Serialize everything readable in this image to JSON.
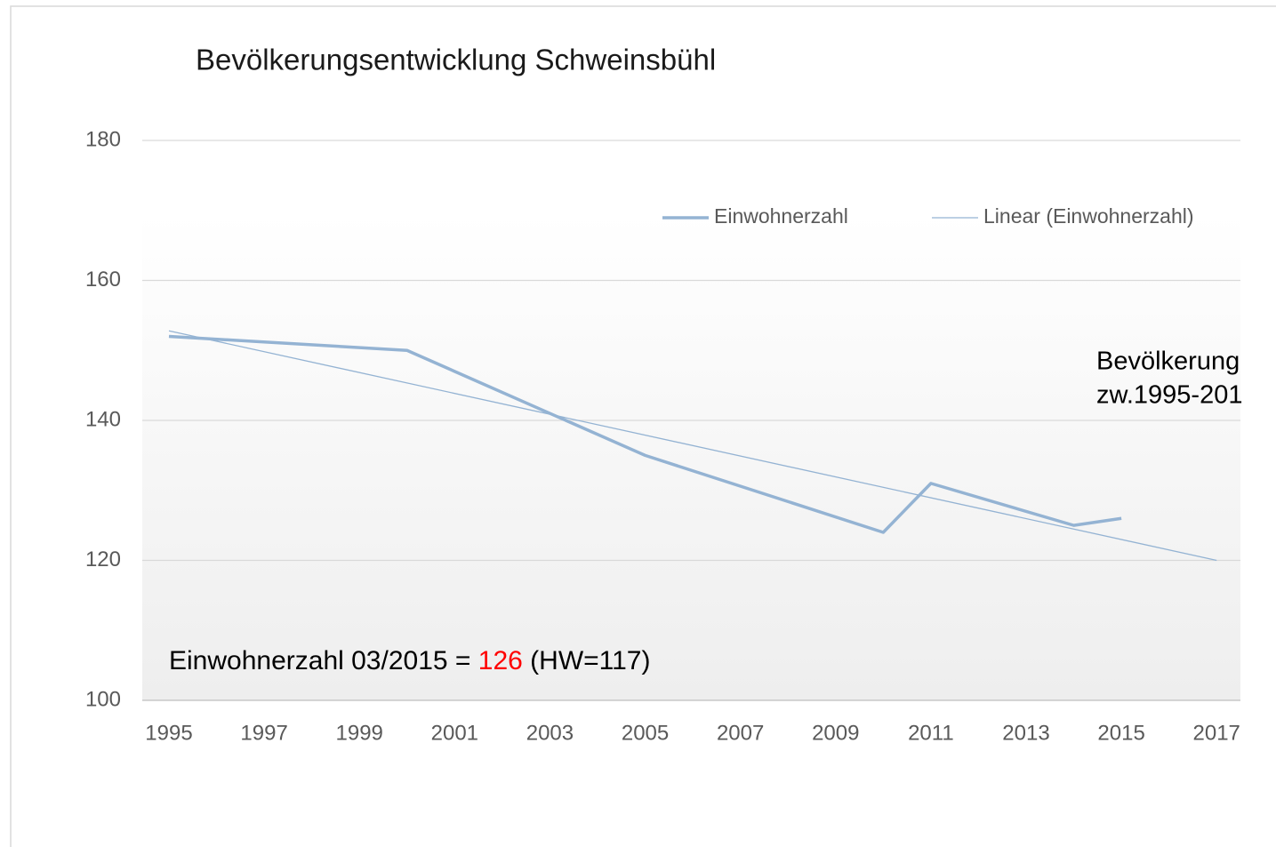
{
  "chart_data": {
    "type": "line",
    "title": "Bevölkerungsentwicklung Schweinsbühl",
    "x": [
      1995,
      2000,
      2005,
      2010,
      2011,
      2014,
      2015
    ],
    "series": [
      {
        "name": "Einwohnerzahl",
        "color": "#94b3d3",
        "values": [
          152,
          150,
          135,
          124,
          131,
          125,
          126
        ]
      },
      {
        "name": "Linear (Einwohnerzahl)",
        "color": "#94b3d3",
        "x": [
          1995,
          2017
        ],
        "values": [
          152.8,
          120
        ]
      }
    ],
    "xlim": [
      1994.44,
      2017.5
    ],
    "xticks": [
      1995,
      1997,
      1999,
      2001,
      2003,
      2005,
      2007,
      2009,
      2011,
      2013,
      2015,
      2017
    ],
    "ylim": [
      100,
      180
    ],
    "yticks": [
      100,
      120,
      140,
      160,
      180
    ],
    "grid": true,
    "legend": "top-right",
    "annotations": {
      "note": {
        "prefix": "Einwohnerzahl 03/2015 = ",
        "highlight": "126",
        "suffix": " (HW=117)"
      },
      "side": [
        "Bevölkerung",
        "zw.1995-201"
      ]
    }
  }
}
